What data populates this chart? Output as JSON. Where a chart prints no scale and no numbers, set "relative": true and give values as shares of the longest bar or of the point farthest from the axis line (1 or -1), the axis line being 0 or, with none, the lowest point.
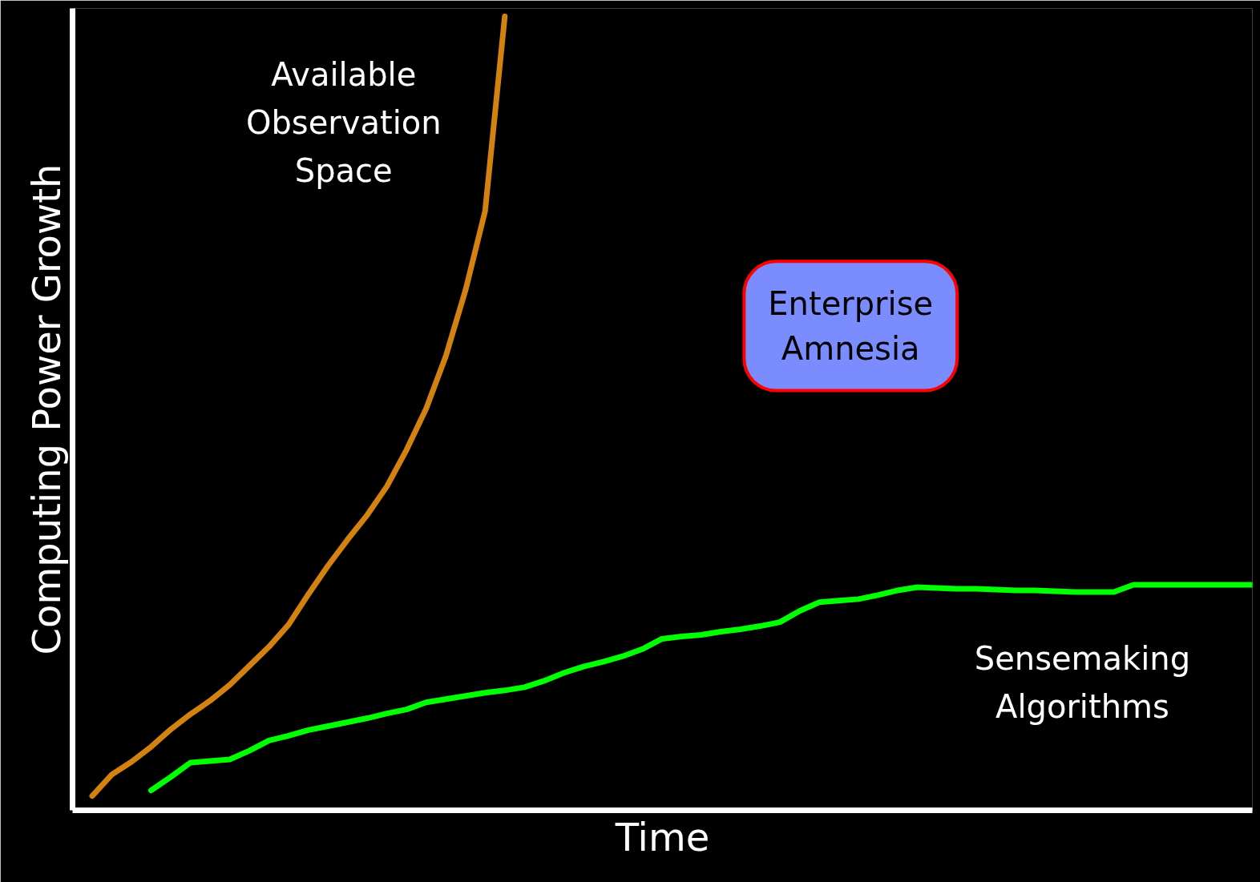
{
  "chart_data": {
    "type": "line",
    "relative": true,
    "xlabel": "Time",
    "ylabel": "Computing Power Growth",
    "annotations": [
      "Enterprise Amnesia"
    ],
    "categories": [
      null,
      null,
      null,
      null,
      null,
      null,
      null,
      null,
      null,
      null,
      null,
      null,
      null,
      null,
      null,
      null,
      null,
      null,
      null,
      null,
      null,
      null,
      null,
      null,
      null,
      null,
      null,
      null,
      null,
      null,
      null,
      null,
      null,
      null,
      null,
      null,
      null,
      null,
      null,
      null,
      null,
      null,
      null,
      null,
      null,
      null,
      null,
      null,
      null,
      null,
      null,
      null,
      null,
      null,
      null,
      null,
      null,
      null,
      null,
      null,
      null
    ],
    "series": [
      {
        "name": "Available Observation Space",
        "color": "#d4820f",
        "values": [
          null,
          0.018,
          0.045,
          0.061,
          0.08,
          0.102,
          0.121,
          0.138,
          0.158,
          0.182,
          0.206,
          0.234,
          0.272,
          0.308,
          0.341,
          0.372,
          0.408,
          0.454,
          0.506,
          0.572,
          0.655,
          0.755,
          1.0,
          null,
          null,
          null,
          null,
          null,
          null,
          null,
          null,
          null,
          null,
          null,
          null,
          null,
          null,
          null,
          null,
          null,
          null,
          null,
          null,
          null,
          null,
          null,
          null,
          null,
          null,
          null,
          null,
          null,
          null,
          null,
          null,
          null,
          null,
          null,
          null,
          null,
          null
        ]
      },
      {
        "name": "Sensemaking Algorithms",
        "color": "#00ff00",
        "values": [
          null,
          null,
          null,
          null,
          0.025,
          0.042,
          0.06,
          0.062,
          0.064,
          0.075,
          0.088,
          0.094,
          0.101,
          0.106,
          0.111,
          0.116,
          0.122,
          0.127,
          0.136,
          0.14,
          0.144,
          0.148,
          0.151,
          0.155,
          0.163,
          0.173,
          0.181,
          0.187,
          0.194,
          0.203,
          0.216,
          0.219,
          0.221,
          0.225,
          0.228,
          0.232,
          0.237,
          0.251,
          0.262,
          0.264,
          0.266,
          0.271,
          0.277,
          0.281,
          0.28,
          0.279,
          0.279,
          0.278,
          0.277,
          0.277,
          0.276,
          0.275,
          0.275,
          0.275,
          0.284,
          0.284,
          0.284,
          0.284,
          0.284,
          0.284,
          0.284
        ]
      }
    ]
  }
}
